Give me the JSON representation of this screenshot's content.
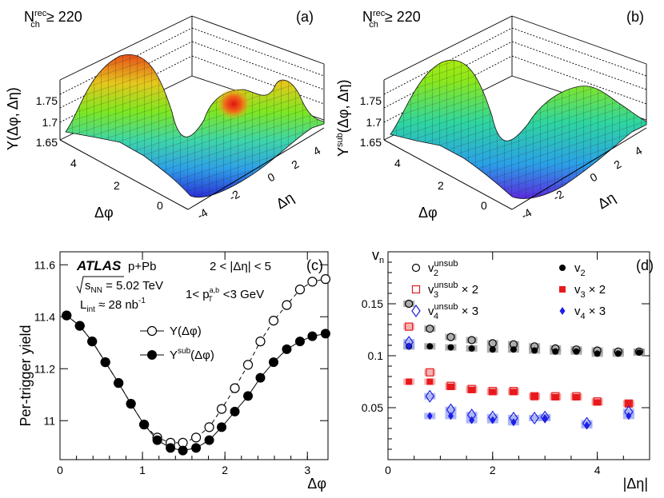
{
  "chart_data": [
    {
      "type": "surface",
      "panel_label": "(a)",
      "multiplicity_label": "N_ch^rec ≥ 220",
      "mult_base": "N",
      "mult_sup": "rec",
      "mult_sub": "ch",
      "mult_tail": "≥ 220",
      "zlabel": "Y(Δφ, Δη)",
      "xlabel": "Δφ",
      "ylabel": "Δη",
      "z_ticks": [
        "1.65",
        "1.7",
        "1.75"
      ],
      "phi_ticks": [
        "0",
        "2",
        "4"
      ],
      "eta_ticks": [
        "-4",
        "-2",
        "0",
        "2",
        "4"
      ],
      "description_values": {
        "z_range": [
          1.62,
          1.82
        ],
        "near_side_peak": true
      }
    },
    {
      "type": "surface",
      "panel_label": "(b)",
      "multiplicity_label": "N_ch^rec ≥ 220",
      "mult_base": "N",
      "mult_sup": "rec",
      "mult_sub": "ch",
      "mult_tail": "≥ 220",
      "zlabel": "Y^sub(Δφ, Δη)",
      "zlabel_base": "Y",
      "zlabel_sup": "sub",
      "zlabel_tail": "(Δφ, Δη)",
      "xlabel": "Δφ",
      "ylabel": "Δη",
      "z_ticks": [
        "1.65",
        "1.7",
        "1.75"
      ],
      "phi_ticks": [
        "0",
        "2",
        "4"
      ],
      "eta_ticks": [
        "-4",
        "-2",
        "0",
        "2",
        "4"
      ],
      "description_values": {
        "z_range": [
          1.62,
          1.82
        ],
        "near_side_peak": false
      }
    },
    {
      "type": "line",
      "panel_label": "(c)",
      "title_atlas": "ATLAS",
      "title_system": "p+Pb",
      "eta_cut": "2 < |Δη| < 5",
      "energy_label": "s_NN = 5.02 TeV",
      "energy_rest": " = 5.02 TeV",
      "lumi_label": "L_int ≈ 28 nb⁻¹",
      "lumi_rest": " ≈ 28 nb",
      "pt_label": "1< p_T^a,b <3 GeV",
      "xlabel": "Δφ",
      "ylabel": "Per-trigger yield",
      "xlim": [
        0,
        3.25
      ],
      "ylim": [
        10.85,
        11.65
      ],
      "xticks": [
        0,
        1,
        2,
        3
      ],
      "yticks": [
        11.0,
        11.2,
        11.4,
        11.6
      ],
      "ytick_labels": [
        "11",
        "11.2",
        "11.4",
        "11.6"
      ],
      "x": [
        0.08,
        0.24,
        0.39,
        0.55,
        0.71,
        0.86,
        1.02,
        1.18,
        1.34,
        1.49,
        1.65,
        1.81,
        1.96,
        2.12,
        2.28,
        2.43,
        2.59,
        2.75,
        2.91,
        3.06,
        3.22
      ],
      "series": [
        {
          "name": "Y(Δφ)",
          "marker": "open-circle",
          "values": [
            11.405,
            11.365,
            11.305,
            11.225,
            11.145,
            11.065,
            10.985,
            10.935,
            10.915,
            10.915,
            10.935,
            10.975,
            11.045,
            11.125,
            11.215,
            11.305,
            11.385,
            11.445,
            11.505,
            11.535,
            11.545
          ]
        },
        {
          "name": "Y^sub(Δφ)",
          "marker": "filled-circle",
          "values": [
            11.405,
            11.365,
            11.305,
            11.225,
            11.145,
            11.065,
            10.985,
            10.925,
            10.895,
            10.885,
            10.895,
            10.925,
            10.975,
            11.035,
            11.095,
            11.165,
            11.225,
            11.275,
            11.305,
            11.325,
            11.335
          ]
        }
      ],
      "legend": [
        "Y(Δφ)",
        "Y^sub(Δφ)"
      ]
    },
    {
      "type": "scatter",
      "panel_label": "(d)",
      "xlabel": "|Δη|",
      "ylabel": "v_n",
      "xlim": [
        0,
        5
      ],
      "ylim": [
        0,
        0.2
      ],
      "xticks": [
        0,
        2,
        4
      ],
      "yticks": [
        0.05,
        0.1,
        0.15
      ],
      "ytick_labels": [
        "0.05",
        "0.1",
        "0.15"
      ],
      "x": [
        0.4,
        0.8,
        1.2,
        1.6,
        2.0,
        2.4,
        2.8,
        3.2,
        3.6,
        4.0,
        4.4,
        4.8
      ],
      "series": [
        {
          "name": "v2^unsub",
          "marker": "open-circle",
          "color": "#000000",
          "x": [
            0.4,
            0.8,
            1.2,
            1.6,
            2.0,
            2.4,
            2.8,
            3.2,
            3.6,
            4.0,
            4.4,
            4.8
          ],
          "values": [
            0.15,
            0.126,
            0.118,
            0.115,
            0.112,
            0.111,
            0.109,
            0.107,
            0.106,
            0.105,
            0.104,
            0.104
          ]
        },
        {
          "name": "v2",
          "marker": "filled-circle",
          "color": "#000000",
          "x": [
            0.4,
            0.8,
            1.2,
            1.6,
            2.0,
            2.4,
            2.8,
            3.2,
            3.6,
            4.0,
            4.4,
            4.8
          ],
          "values": [
            0.109,
            0.109,
            0.108,
            0.107,
            0.106,
            0.106,
            0.105,
            0.104,
            0.104,
            0.102,
            0.102,
            0.103
          ]
        },
        {
          "name": "v3^unsub×2",
          "marker": "open-square",
          "color": "#e8191c",
          "x": [
            0.4,
            0.8,
            1.2,
            1.6,
            2.0,
            2.4,
            2.8,
            3.2,
            3.6,
            4.0,
            4.6
          ],
          "values": [
            0.128,
            0.084,
            0.071,
            0.068,
            0.066,
            0.066,
            0.061,
            0.061,
            0.061,
            0.056,
            0.054
          ]
        },
        {
          "name": "v3×2",
          "marker": "filled-square",
          "color": "#e8191c",
          "x": [
            0.4,
            0.8,
            1.2,
            1.6,
            2.0,
            2.4,
            2.8,
            3.2,
            3.6,
            4.0,
            4.6
          ],
          "values": [
            0.075,
            0.075,
            0.07,
            0.067,
            0.065,
            0.065,
            0.061,
            0.06,
            0.06,
            0.055,
            0.054
          ]
        },
        {
          "name": "v4^unsub×3",
          "marker": "open-diamond",
          "color": "#1e1ee6",
          "x": [
            0.4,
            0.8,
            1.2,
            1.6,
            2.0,
            2.4,
            2.8,
            3.0,
            3.8,
            4.6
          ],
          "values": [
            0.113,
            0.061,
            0.048,
            0.043,
            0.041,
            0.04,
            0.04,
            0.041,
            0.035,
            0.046
          ]
        },
        {
          "name": "v4×3",
          "marker": "filled-diamond",
          "color": "#1e1ee6",
          "x": [
            0.4,
            0.8,
            1.2,
            1.6,
            2.0,
            2.4,
            3.0,
            3.8,
            4.6
          ],
          "values": [
            0.109,
            0.042,
            0.042,
            0.038,
            0.038,
            0.036,
            0.04,
            0.033,
            0.042
          ]
        }
      ],
      "legend_entries": [
        {
          "base": "v",
          "sub": "2",
          "sup": "unsub",
          "tail": ""
        },
        {
          "base": "v",
          "sub": "2",
          "sup": "",
          "tail": ""
        },
        {
          "base": "v",
          "sub": "3",
          "sup": "unsub",
          "tail": " × 2"
        },
        {
          "base": "v",
          "sub": "3",
          "sup": "",
          "tail": " × 2"
        },
        {
          "base": "v",
          "sub": "4",
          "sup": "unsub",
          "tail": " × 3"
        },
        {
          "base": "v",
          "sub": "4",
          "sup": "",
          "tail": " × 3"
        }
      ]
    }
  ]
}
